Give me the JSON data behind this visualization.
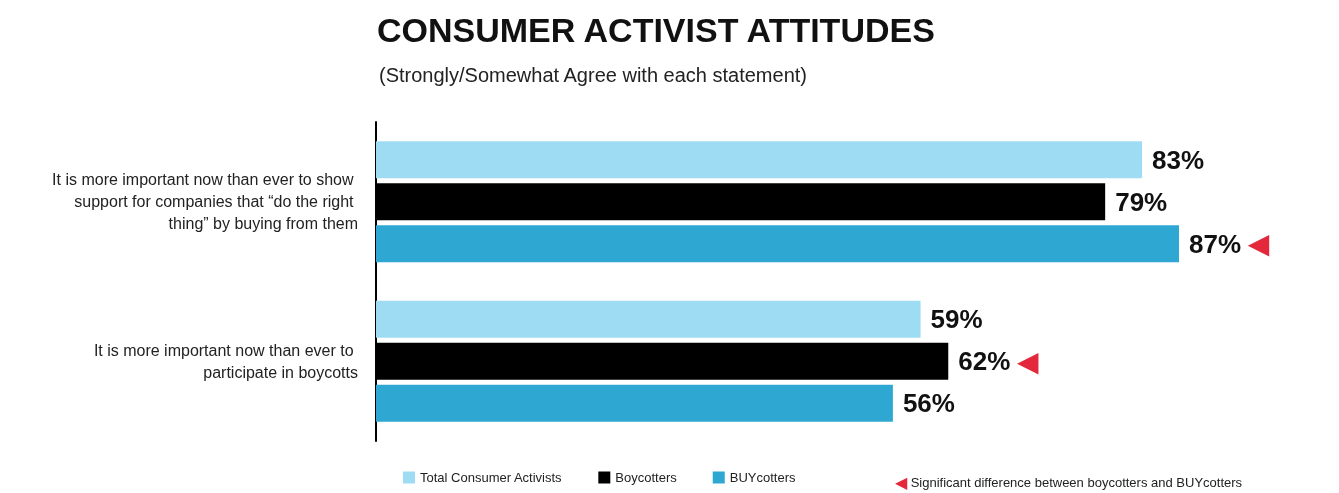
{
  "chart_data": {
    "type": "bar",
    "orientation": "horizontal",
    "title": "CONSUMER ACTIVIST ATTITUDES",
    "subtitle": "(Strongly/Somewhat Agree with each statement)",
    "categories": [
      "It is more important now than ever to show support for companies that “do the right thing” by buying from them",
      "It is more important now than ever to participate in boycotts"
    ],
    "series": [
      {
        "name": "Total Consumer Activists",
        "color": "#9edcf3",
        "values": [
          83,
          59
        ],
        "value_labels": [
          "83%",
          "59%"
        ]
      },
      {
        "name": "Boycotters",
        "color": "#000000",
        "values": [
          79,
          62
        ],
        "value_labels": [
          "79%",
          "62% ◀"
        ]
      },
      {
        "name": "BUYcotters",
        "color": "#2ea7d3",
        "values": [
          87,
          56
        ],
        "value_labels": [
          "87% ◀",
          "56%"
        ]
      }
    ],
    "annotations": [
      "◀ Significant difference between boycotters and BUYcotters"
    ],
    "legend": "bottom"
  }
}
